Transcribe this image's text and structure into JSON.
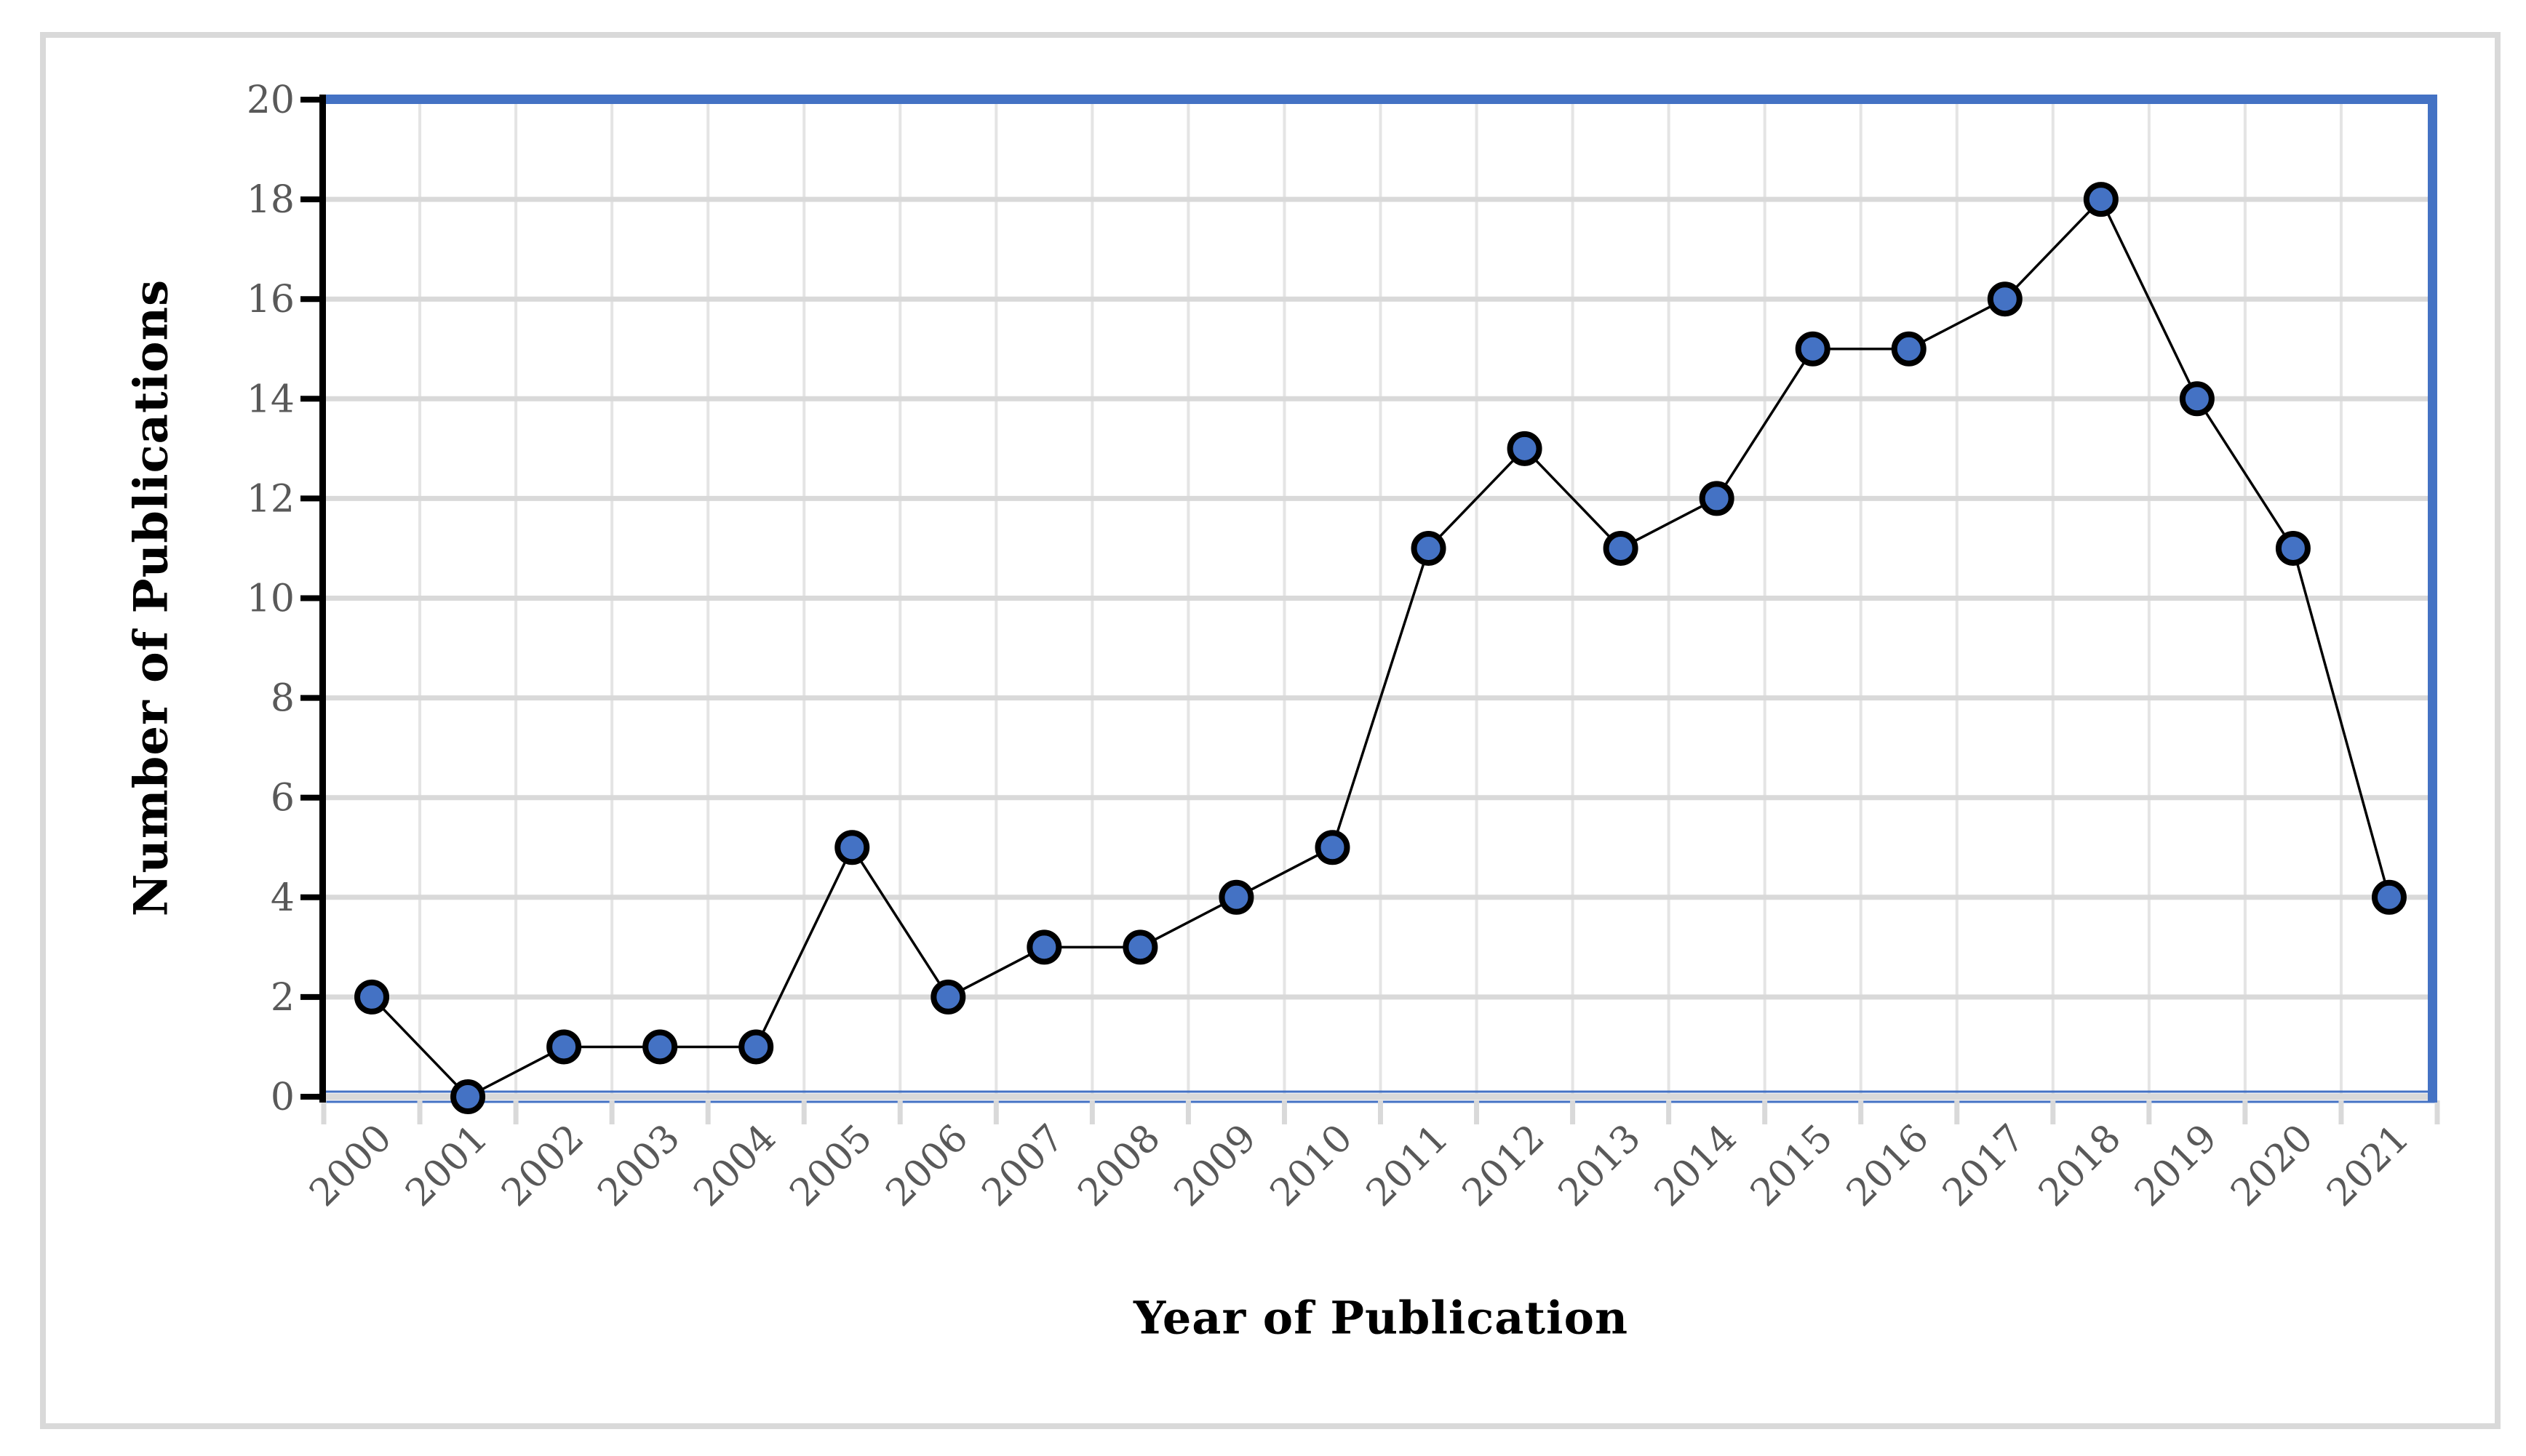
{
  "chart_data": {
    "type": "line",
    "title": "",
    "categories": [
      "2000",
      "2001",
      "2002",
      "2003",
      "2004",
      "2005",
      "2006",
      "2007",
      "2008",
      "2009",
      "2010",
      "2011",
      "2012",
      "2013",
      "2014",
      "2015",
      "2016",
      "2017",
      "2018",
      "2019",
      "2020",
      "2021"
    ],
    "values": [
      2,
      0,
      1,
      1,
      1,
      5,
      2,
      3,
      3,
      4,
      5,
      11,
      13,
      11,
      12,
      15,
      15,
      16,
      18,
      14,
      11,
      4
    ],
    "xlabel": "Year of Publication",
    "ylabel": "Number of Publications",
    "ylim": [
      0,
      20
    ],
    "ytick_interval": 2,
    "ytick_labels": [
      "0",
      "2",
      "4",
      "6",
      "8",
      "10",
      "12",
      "14",
      "16",
      "18",
      "20"
    ],
    "x_tick_rotation": -45,
    "grid": true,
    "legend": false,
    "marker_shape": "circle",
    "colors": {
      "marker_fill": "#4472C4",
      "marker_stroke": "#000000",
      "line": "#000000",
      "plot_border": "#4472C4",
      "gridline": "#D9D9D9",
      "minor_gridline": "#E4E4E4",
      "tick_label": "#595959",
      "axis_title": "#000000",
      "axis_line": "#000000",
      "frame": "#D9D9D9"
    }
  }
}
